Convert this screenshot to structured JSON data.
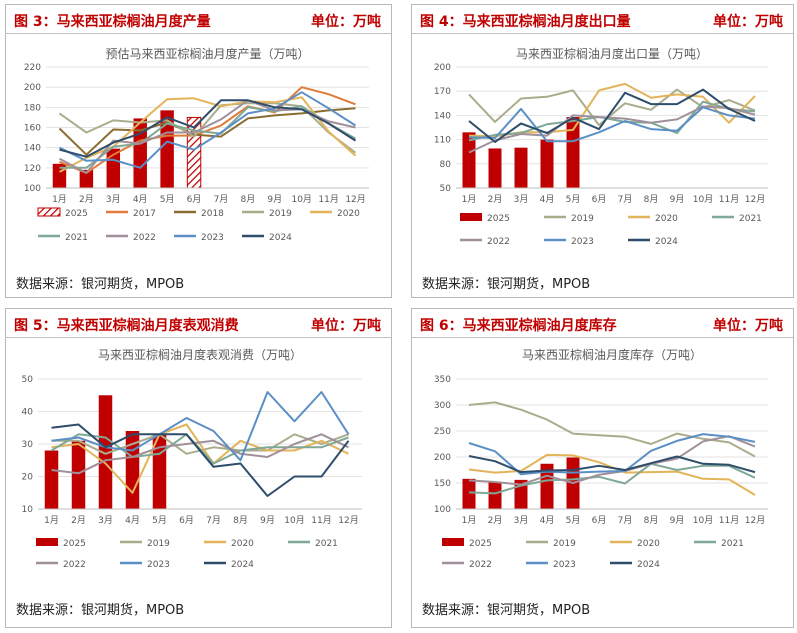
{
  "colors": {
    "2025": "#c00000",
    "2017": "#e07b39",
    "2018": "#8c6d31",
    "2019": "#a9ad8b",
    "2020": "#e3b45a",
    "2021": "#7fa896",
    "2022": "#a0909a",
    "2023": "#5b8fc5",
    "2024": "#2e4d6b"
  },
  "panels": [
    {
      "header": "图 3：马来西亚棕榈油月度产量",
      "unit": "单位：万吨",
      "source": "数据来源：银河期货，MPOB"
    },
    {
      "header": "图 4：马来西亚棕榈油月度出口量",
      "unit": "单位：万吨",
      "source": "数据来源：银河期货，MPOB"
    },
    {
      "header": "图 5：马来西亚棕榈油月度表观消费",
      "unit": "单位：万吨",
      "source": "数据来源：银河期货，MPOB"
    },
    {
      "header": "图 6：马来西亚棕榈油月度库存",
      "unit": "单位：万吨",
      "source": "数据来源：银河期货，MPOB"
    }
  ],
  "chart_data": [
    {
      "type": "bar",
      "title": "预估马来西亚棕榈油月度产量（万吨）",
      "categories": [
        "1月",
        "2月",
        "3月",
        "4月",
        "5月",
        "6月",
        "7月",
        "8月",
        "9月",
        "10月",
        "11月",
        "12月"
      ],
      "ylim": [
        100,
        220
      ],
      "yticks": [
        100,
        120,
        140,
        160,
        180,
        200,
        220
      ],
      "bar_series": [
        {
          "name": "2025",
          "values": [
            124,
            118,
            139,
            169,
            177,
            170,
            null,
            null,
            null,
            null,
            null,
            null
          ],
          "estimated_index": 5
        }
      ],
      "series": [
        {
          "name": "2017",
          "values": [
            126,
            115,
            133,
            147,
            152,
            152,
            162,
            181,
            175,
            200,
            193,
            183
          ]
        },
        {
          "name": "2018",
          "values": [
            159,
            133,
            158,
            157,
            165,
            153,
            151,
            169,
            172,
            174,
            177,
            179
          ]
        },
        {
          "name": "2019",
          "values": [
            174,
            155,
            167,
            165,
            167,
            151,
            182,
            184,
            184,
            181,
            155,
            135
          ]
        },
        {
          "name": "2020",
          "values": [
            116,
            130,
            141,
            165,
            188,
            189,
            181,
            186,
            185,
            190,
            156,
            132
          ]
        },
        {
          "name": "2021",
          "values": [
            120,
            120,
            141,
            144,
            164,
            157,
            154,
            180,
            176,
            181,
            164,
            149
          ]
        },
        {
          "name": "2022",
          "values": [
            129,
            115,
            147,
            144,
            155,
            155,
            168,
            187,
            177,
            178,
            166,
            160
          ]
        },
        {
          "name": "2023",
          "values": [
            140,
            127,
            128,
            120,
            146,
            138,
            155,
            174,
            179,
            195,
            179,
            162
          ]
        },
        {
          "name": "2024",
          "values": [
            138,
            131,
            145,
            154,
            170,
            160,
            187,
            187,
            180,
            178,
            164,
            147
          ]
        }
      ],
      "legend": [
        "2025",
        "2017",
        "2018",
        "2019",
        "2020",
        "2021",
        "2022",
        "2023",
        "2024"
      ]
    },
    {
      "type": "bar",
      "title": "马来西亚棕榈油月度出口量（万吨）",
      "categories": [
        "1月",
        "2月",
        "3月",
        "4月",
        "5月",
        "6月",
        "7月",
        "8月",
        "9月",
        "10月",
        "11月",
        "12月"
      ],
      "ylim": [
        50,
        200
      ],
      "yticks": [
        50,
        80,
        110,
        140,
        170,
        200
      ],
      "bar_series": [
        {
          "name": "2025",
          "values": [
            119,
            99,
            100,
            110,
            138,
            null,
            null,
            null,
            null,
            null,
            null,
            null
          ]
        }
      ],
      "series": [
        {
          "name": "2019",
          "values": [
            166,
            132,
            161,
            163,
            171,
            128,
            155,
            147,
            172,
            150,
            159,
            146
          ]
        },
        {
          "name": "2020",
          "values": [
            115,
            114,
            119,
            119,
            122,
            171,
            179,
            162,
            166,
            163,
            131,
            164
          ]
        },
        {
          "name": "2021",
          "values": [
            109,
            116,
            118,
            129,
            133,
            138,
            132,
            131,
            118,
            157,
            148,
            145
          ]
        },
        {
          "name": "2022",
          "values": [
            94,
            109,
            117,
            115,
            140,
            138,
            136,
            131,
            135,
            151,
            149,
            141
          ]
        },
        {
          "name": "2023",
          "values": [
            113,
            112,
            148,
            108,
            108,
            119,
            133,
            123,
            121,
            150,
            140,
            136
          ]
        },
        {
          "name": "2024",
          "values": [
            133,
            107,
            130,
            118,
            137,
            123,
            168,
            154,
            154,
            172,
            148,
            133
          ]
        }
      ],
      "legend": [
        "2025",
        "2019",
        "2020",
        "2021",
        "2022",
        "2023",
        "2024"
      ]
    },
    {
      "type": "bar",
      "title": "马来西亚棕榈油月度表观消费（万吨）",
      "categories": [
        "1月",
        "2月",
        "3月",
        "4月",
        "5月",
        "6月",
        "7月",
        "8月",
        "9月",
        "10月",
        "11月",
        "12月"
      ],
      "ylim": [
        10,
        50
      ],
      "yticks": [
        10,
        20,
        30,
        40,
        50
      ],
      "bar_series": [
        {
          "name": "2025",
          "values": [
            28,
            31,
            45,
            34,
            33,
            null,
            null,
            null,
            null,
            null,
            null,
            null
          ]
        }
      ],
      "series": [
        {
          "name": "2019",
          "values": [
            31,
            31,
            27,
            30,
            33,
            27,
            29,
            28,
            28,
            33,
            30,
            33
          ]
        },
        {
          "name": "2020",
          "values": [
            29,
            30,
            24,
            15,
            33,
            36,
            24,
            31,
            28,
            28,
            31,
            27
          ]
        },
        {
          "name": "2021",
          "values": [
            28,
            33,
            32,
            26,
            27,
            33,
            24,
            28,
            29,
            29,
            29,
            32
          ]
        },
        {
          "name": "2022",
          "values": [
            22,
            21,
            25,
            26,
            29,
            30,
            31,
            27,
            26,
            30,
            33,
            29
          ]
        },
        {
          "name": "2023",
          "values": [
            31,
            32,
            29,
            28,
            33,
            38,
            34,
            25,
            46,
            37,
            46,
            33
          ]
        },
        {
          "name": "2024",
          "values": [
            35,
            36,
            29,
            33,
            33,
            33,
            23,
            24,
            14,
            20,
            20,
            31
          ]
        }
      ],
      "legend": [
        "2025",
        "2019",
        "2020",
        "2021",
        "2022",
        "2023",
        "2024"
      ]
    },
    {
      "type": "bar",
      "title": "马来西亚棕榈油月度库存（万吨）",
      "categories": [
        "1月",
        "2月",
        "3月",
        "4月",
        "5月",
        "6月",
        "7月",
        "8月",
        "9月",
        "10月",
        "11月",
        "12月"
      ],
      "ylim": [
        100,
        350
      ],
      "yticks": [
        100,
        150,
        200,
        250,
        300,
        350
      ],
      "bar_series": [
        {
          "name": "2025",
          "values": [
            158,
            151,
            156,
            187,
            199,
            null,
            null,
            null,
            null,
            null,
            null,
            null
          ]
        }
      ],
      "series": [
        {
          "name": "2019",
          "values": [
            300,
            305,
            291,
            272,
            245,
            242,
            239,
            225,
            245,
            235,
            228,
            201
          ]
        },
        {
          "name": "2020",
          "values": [
            176,
            170,
            173,
            204,
            203,
            190,
            170,
            171,
            172,
            158,
            157,
            127
          ]
        },
        {
          "name": "2021",
          "values": [
            132,
            130,
            145,
            155,
            157,
            162,
            149,
            187,
            175,
            183,
            183,
            160
          ]
        },
        {
          "name": "2022",
          "values": [
            155,
            152,
            147,
            164,
            150,
            166,
            173,
            187,
            197,
            230,
            240,
            220
          ]
        },
        {
          "name": "2023",
          "values": [
            227,
            211,
            167,
            172,
            170,
            172,
            173,
            212,
            231,
            244,
            239,
            229
          ]
        },
        {
          "name": "2024",
          "values": [
            202,
            192,
            171,
            174,
            175,
            183,
            175,
            188,
            201,
            187,
            185,
            171
          ]
        }
      ],
      "legend": [
        "2025",
        "2019",
        "2020",
        "2021",
        "2022",
        "2023",
        "2024"
      ]
    }
  ]
}
